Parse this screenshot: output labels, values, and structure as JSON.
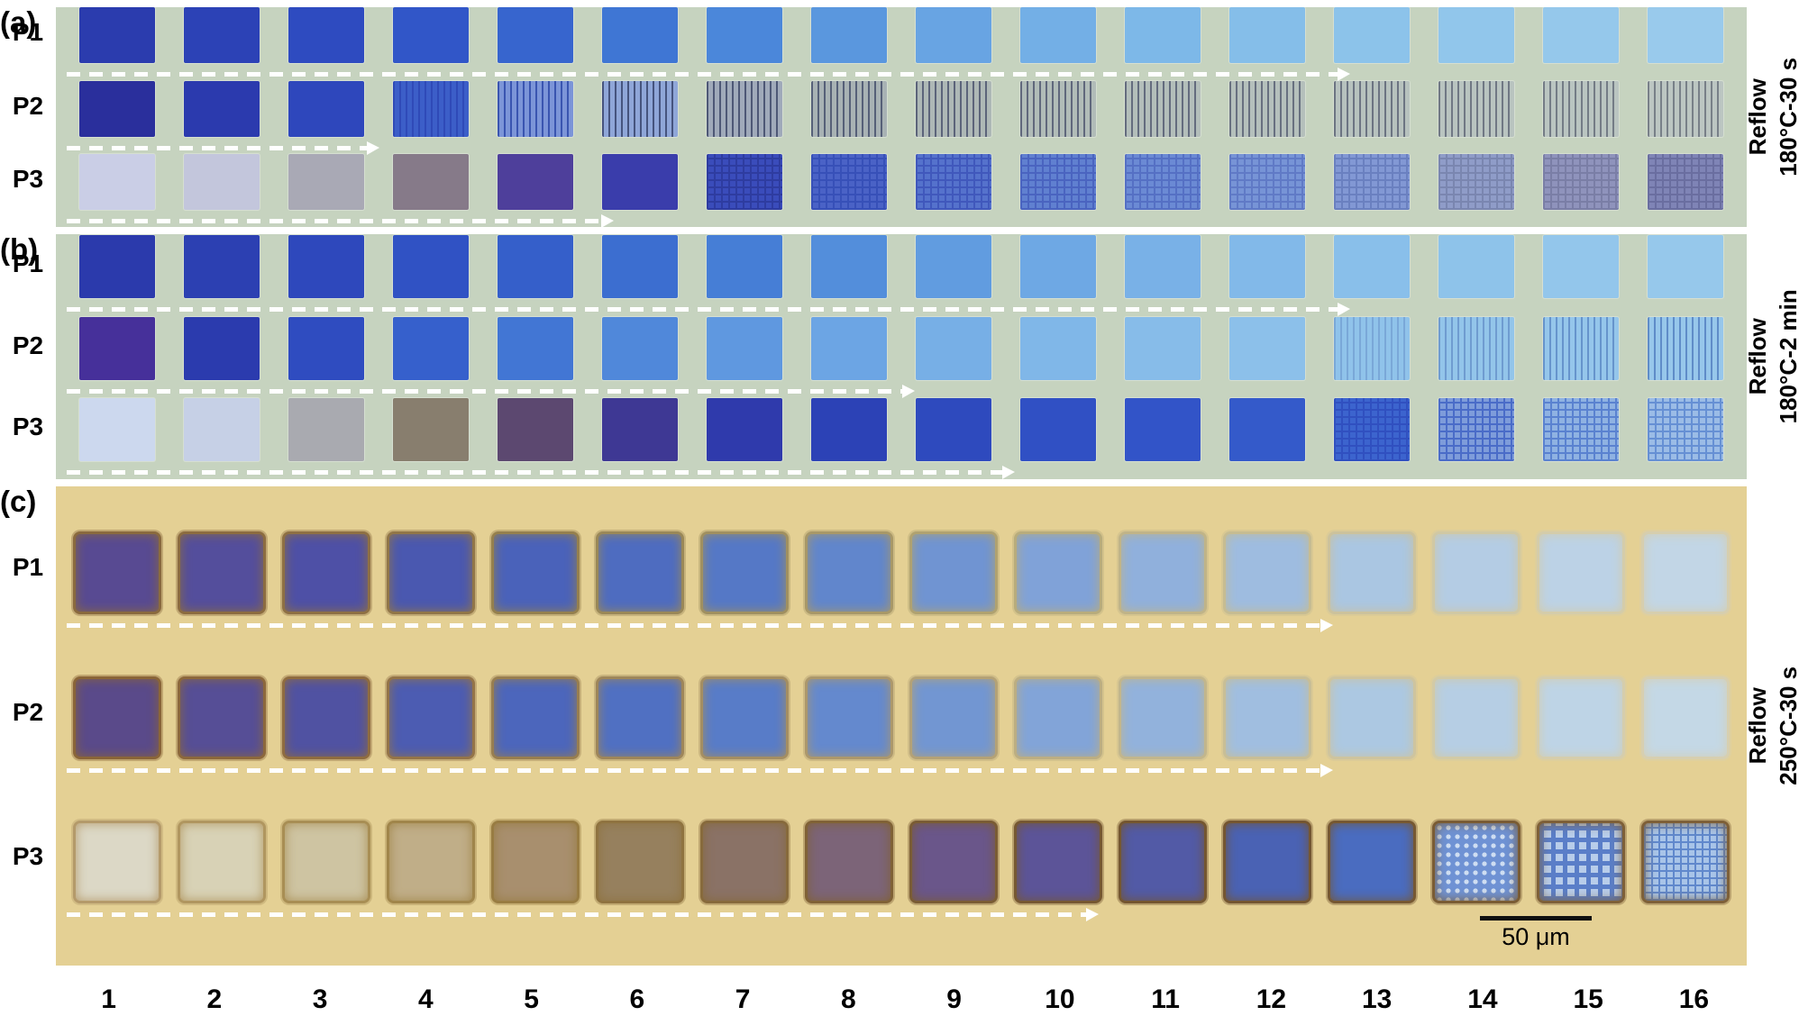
{
  "figure": {
    "columns": [
      "1",
      "2",
      "3",
      "4",
      "5",
      "6",
      "7",
      "8",
      "9",
      "10",
      "11",
      "12",
      "13",
      "14",
      "15",
      "16"
    ],
    "scale_bar": {
      "label": "50 μm"
    },
    "panels": [
      {
        "id": "a",
        "label": "(a)",
        "bg": "#c6d3bf",
        "side_label": {
          "line1": "Reflow",
          "line2": "180°C-30 s"
        },
        "rows": [
          {
            "label": "P1",
            "arrow_end_pct": 76,
            "cells": [
              {
                "c": "#2b3cae"
              },
              {
                "c": "#2c42b6"
              },
              {
                "c": "#2e4bc0"
              },
              {
                "c": "#3156c8"
              },
              {
                "c": "#3765ce"
              },
              {
                "c": "#3f76d4"
              },
              {
                "c": "#4b87da"
              },
              {
                "c": "#5a97de"
              },
              {
                "c": "#68a4e3"
              },
              {
                "c": "#73afe6"
              },
              {
                "c": "#7db8e8"
              },
              {
                "c": "#85bee9"
              },
              {
                "c": "#8cc3ea"
              },
              {
                "c": "#91c6eb"
              },
              {
                "c": "#95c8eb"
              },
              {
                "c": "#99caec"
              }
            ]
          },
          {
            "label": "P2",
            "arrow_end_pct": 18,
            "cells": [
              {
                "c": "#2a2f9c"
              },
              {
                "c": "#2b3aae"
              },
              {
                "c": "#2e47bc"
              },
              {
                "c": "#3c5ec8",
                "p": "v",
                "f": "#2f4ab8"
              },
              {
                "c": "#7c95d8",
                "p": "v",
                "f": "#3a55b0"
              },
              {
                "c": "#8fa6d8",
                "p": "v",
                "f": "#46547e"
              },
              {
                "c": "#a0aaba",
                "p": "v",
                "f": "#4e5876"
              },
              {
                "c": "#a8b2b4",
                "p": "v",
                "f": "#566078"
              },
              {
                "c": "#aeb8b6",
                "p": "v",
                "f": "#5c647a"
              },
              {
                "c": "#b1bcb8",
                "p": "v",
                "f": "#60687c"
              },
              {
                "c": "#b3beba",
                "p": "v",
                "f": "#646c7e"
              },
              {
                "c": "#b5c0bc",
                "p": "v",
                "f": "#687080"
              },
              {
                "c": "#b7c2be",
                "p": "v",
                "f": "#6c7482"
              },
              {
                "c": "#b9c4c0",
                "p": "v",
                "f": "#707884"
              },
              {
                "c": "#bac5c1",
                "p": "v",
                "f": "#747c86"
              },
              {
                "c": "#bcc6c2",
                "p": "v",
                "f": "#788088"
              }
            ]
          },
          {
            "label": "P3",
            "arrow_end_pct": 32,
            "cells": [
              {
                "c": "#cacee6"
              },
              {
                "c": "#c3c6dc"
              },
              {
                "c": "#a9a9b5"
              },
              {
                "c": "#867a89"
              },
              {
                "c": "#4e3f9b"
              },
              {
                "c": "#3a3dab"
              },
              {
                "c": "#3a4cbb",
                "p": "g",
                "f": "#2e3ca0"
              },
              {
                "c": "#4a62c6",
                "p": "g",
                "f": "#3750b8"
              },
              {
                "c": "#5572cc",
                "p": "g",
                "f": "#4058bc"
              },
              {
                "c": "#6080d0",
                "p": "g",
                "f": "#4a64c0"
              },
              {
                "c": "#6b8ad4",
                "p": "g",
                "f": "#5570c4"
              },
              {
                "c": "#7794d6",
                "p": "g",
                "f": "#607ac6"
              },
              {
                "c": "#8298d4",
                "p": "g",
                "f": "#6a80c0"
              },
              {
                "c": "#8f9cc8",
                "p": "g",
                "f": "#7a86b0"
              },
              {
                "c": "#8f93bc",
                "p": "g",
                "f": "#7a7ea6"
              },
              {
                "c": "#7f84b6",
                "p": "g",
                "f": "#6a6ea0"
              }
            ]
          }
        ]
      },
      {
        "id": "b",
        "label": "(b)",
        "bg": "#c6d3bf",
        "side_label": {
          "line1": "Reflow",
          "line2": "180°C-2 min"
        },
        "rows": [
          {
            "label": "P1",
            "arrow_end_pct": 76,
            "cells": [
              {
                "c": "#2b3aac"
              },
              {
                "c": "#2c40b2"
              },
              {
                "c": "#2e48bc"
              },
              {
                "c": "#3052c4"
              },
              {
                "c": "#355fca"
              },
              {
                "c": "#3c6ed0"
              },
              {
                "c": "#467ed6"
              },
              {
                "c": "#538edb"
              },
              {
                "c": "#619ce0"
              },
              {
                "c": "#6ea8e4"
              },
              {
                "c": "#79b1e7"
              },
              {
                "c": "#82b9e9"
              },
              {
                "c": "#89bfea"
              },
              {
                "c": "#8ec3ea"
              },
              {
                "c": "#93c6eb"
              },
              {
                "c": "#96c8eb"
              }
            ]
          },
          {
            "label": "P2",
            "arrow_end_pct": 50,
            "cells": [
              {
                "c": "#46309a"
              },
              {
                "c": "#2b3bae"
              },
              {
                "c": "#2f4cc0"
              },
              {
                "c": "#3660cc"
              },
              {
                "c": "#4276d4"
              },
              {
                "c": "#5088da"
              },
              {
                "c": "#5f98e0"
              },
              {
                "c": "#6ca5e4"
              },
              {
                "c": "#77afe6"
              },
              {
                "c": "#80b7e8"
              },
              {
                "c": "#87bce9"
              },
              {
                "c": "#8cc0ea"
              },
              {
                "c": "#90c3ea",
                "p": "v",
                "f": "#7aa8d8"
              },
              {
                "c": "#93c5ea",
                "p": "v",
                "f": "#6f9cd0"
              },
              {
                "c": "#95c6eb",
                "p": "v",
                "f": "#6694cc"
              },
              {
                "c": "#97c7eb",
                "p": "v",
                "f": "#5f8cc8"
              }
            ]
          },
          {
            "label": "P3",
            "arrow_end_pct": 56,
            "cells": [
              {
                "c": "#ccd8ee"
              },
              {
                "c": "#c6d0e6"
              },
              {
                "c": "#a9aab0"
              },
              {
                "c": "#887e6e"
              },
              {
                "c": "#5c4870"
              },
              {
                "c": "#3e3894"
              },
              {
                "c": "#2f3aac"
              },
              {
                "c": "#2c42b6"
              },
              {
                "c": "#2e4abe"
              },
              {
                "c": "#3050c4"
              },
              {
                "c": "#3254c8"
              },
              {
                "c": "#345aca"
              },
              {
                "c": "#3c64ce",
                "p": "g",
                "f": "#3050c0"
              },
              {
                "c": "#7e9cda",
                "p": "g",
                "f": "#4a6cc8"
              },
              {
                "c": "#8fb2e2",
                "p": "g",
                "f": "#5a82d0"
              },
              {
                "c": "#9bbce6",
                "p": "g",
                "f": "#6690d4"
              }
            ]
          }
        ]
      },
      {
        "id": "c",
        "label": "(c)",
        "bg": "#e4d094",
        "side_label": {
          "line1": "Reflow",
          "line2": "250°C-30 s"
        },
        "rows": [
          {
            "label": "P1",
            "arrow_end_pct": 75,
            "cells": [
              {
                "c": "#584a92",
                "r": "#8a6a3e"
              },
              {
                "c": "#544e9c",
                "r": "#8c6c40"
              },
              {
                "c": "#4e50a6",
                "r": "#8e7044"
              },
              {
                "c": "#4a58b0",
                "r": "#917648"
              },
              {
                "c": "#4a62ba",
                "r": "#95804e"
              },
              {
                "c": "#4e6cc0",
                "r": "#9a8858"
              },
              {
                "c": "#5578c6",
                "r": "#a09060"
              },
              {
                "c": "#6186cc",
                "r": "#a89868"
              },
              {
                "c": "#7094d2",
                "r": "#b0a270"
              },
              {
                "c": "#80a2d8",
                "r": "#b8ac7c"
              },
              {
                "c": "#90b0dc",
                "r": "#c0b488"
              },
              {
                "c": "#9ebce0",
                "r": "#c6bc92"
              },
              {
                "c": "#aac6e2",
                "r": "#ccc29c"
              },
              {
                "c": "#b4cce4",
                "r": "#d0c8a4"
              },
              {
                "c": "#bcd2e6",
                "r": "#d4ccaa"
              },
              {
                "c": "#c2d6e6",
                "r": "#d6ceae"
              }
            ]
          },
          {
            "label": "P2",
            "arrow_end_pct": 75,
            "cells": [
              {
                "c": "#5a4a8a",
                "r": "#8a6538"
              },
              {
                "c": "#564e96",
                "r": "#8c683c"
              },
              {
                "c": "#5052a2",
                "r": "#8f6c40"
              },
              {
                "c": "#4c5cb2",
                "r": "#947448"
              },
              {
                "c": "#4c66bc",
                "r": "#987e50"
              },
              {
                "c": "#5070c2",
                "r": "#9e865a"
              },
              {
                "c": "#587cc8",
                "r": "#a48e62"
              },
              {
                "c": "#6489ce",
                "r": "#ac986c"
              },
              {
                "c": "#7296d2",
                "r": "#b4a276"
              },
              {
                "c": "#82a4d8",
                "r": "#bcae82"
              },
              {
                "c": "#92b2dc",
                "r": "#c2b68c"
              },
              {
                "c": "#a0bee0",
                "r": "#c8be96"
              },
              {
                "c": "#acc8e2",
                "r": "#cec49e"
              },
              {
                "c": "#b6cee4",
                "r": "#d2caa6"
              },
              {
                "c": "#bed4e6",
                "r": "#d5cdac"
              },
              {
                "c": "#c4d8e6",
                "r": "#d7cfb0"
              }
            ]
          },
          {
            "label": "P3",
            "arrow_end_pct": 61,
            "cells": [
              {
                "c": "#dcd8c6",
                "r": "#b49a6a"
              },
              {
                "c": "#d8d2b6",
                "r": "#b0965f"
              },
              {
                "c": "#cec4a2",
                "r": "#a88e54"
              },
              {
                "c": "#c0ae88",
                "r": "#a0854a"
              },
              {
                "c": "#a88f6e",
                "r": "#987c42"
              },
              {
                "c": "#96805e",
                "r": "#8f7340"
              },
              {
                "c": "#8a7266",
                "r": "#876a3c"
              },
              {
                "c": "#7c6478",
                "r": "#806236"
              },
              {
                "c": "#6a568a",
                "r": "#7a5c34"
              },
              {
                "c": "#5c5498",
                "r": "#765832"
              },
              {
                "c": "#525aa6",
                "r": "#745630"
              },
              {
                "c": "#4a62b4",
                "r": "#745631"
              },
              {
                "c": "#4a6cc0",
                "r": "#765832"
              },
              {
                "c": "#6f92d4",
                "p": "d",
                "f": "#cfdef2",
                "r": "#7a5c34"
              },
              {
                "c": "#b8cdea",
                "p": "m",
                "f": "#5a7ec8",
                "r": "#7e6038"
              },
              {
                "c": "#a8c4e8",
                "p": "g",
                "f": "#6088cc",
                "r": "#7e6038"
              }
            ]
          }
        ]
      }
    ]
  }
}
